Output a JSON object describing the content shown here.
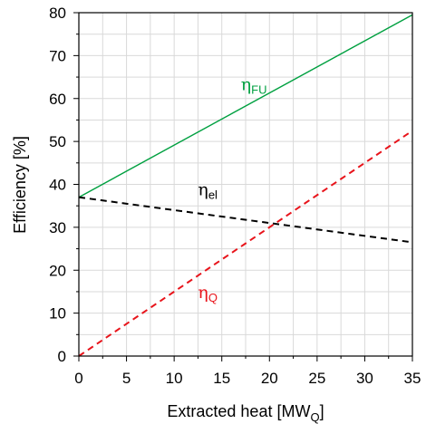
{
  "chart_data": {
    "type": "line",
    "xlabel": "Extracted heat [MW",
    "xlabel_sub": "Q",
    "xlabel_end": "]",
    "ylabel": "Efficiency [%]",
    "xlim": [
      0,
      35
    ],
    "ylim": [
      0,
      80
    ],
    "x_ticks": [
      0,
      5,
      10,
      15,
      20,
      25,
      30,
      35
    ],
    "y_ticks": [
      0,
      10,
      20,
      30,
      40,
      50,
      60,
      70,
      80
    ],
    "grid": true,
    "series": [
      {
        "symbol": "η",
        "subscript": "FU",
        "color": "#00a040",
        "dash": "solid",
        "x": [
          0,
          35
        ],
        "y": [
          37,
          79.5
        ],
        "label_at": [
          17,
          62
        ]
      },
      {
        "symbol": "η",
        "subscript": "el",
        "color": "#000000",
        "dash": "dashed",
        "x": [
          0,
          35
        ],
        "y": [
          37,
          26.5
        ],
        "label_at": [
          12.5,
          37.5
        ]
      },
      {
        "symbol": "η",
        "subscript": "Q",
        "color": "#e8141b",
        "dash": "dashed",
        "x": [
          0,
          35
        ],
        "y": [
          0,
          52.5
        ],
        "label_at": [
          12.5,
          13.5
        ]
      }
    ]
  }
}
